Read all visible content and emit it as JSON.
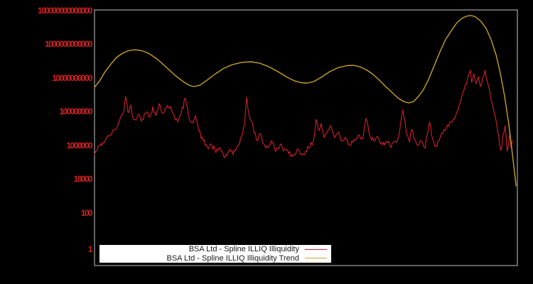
{
  "colors": {
    "background": "#000000",
    "frame": "#c4c4c4",
    "tick_label_color": "#d42020",
    "illiquidity_color": "#d4202c",
    "trend_color": "#c9a227",
    "legend_bg": "#ffffff",
    "legend_border": "#000000",
    "legend_text": "#1a1a1a"
  },
  "legend": {
    "entries": [
      {
        "label": "BSA Ltd - Spline ILLIQ Illiquidity",
        "swatch": "red-line"
      },
      {
        "label": "BSA Ltd - Spline ILLIQ Illiquidity Trend",
        "swatch": "gold-line"
      }
    ]
  },
  "chart_data": {
    "type": "line",
    "title": "",
    "xlabel": "",
    "ylabel": "",
    "y_scale": "log10",
    "ylim": [
      0.1,
      100000000000000
    ],
    "x_axis_labels": "none",
    "grid": false,
    "legend_position": "bottom-center-inside",
    "y_tick_labels": [
      "100000000000000",
      "1000000000000",
      "10000000000",
      "100000000",
      "1000000",
      "10000",
      "100",
      "1"
    ],
    "y_tick_values": [
      100000000000000,
      1000000000000,
      10000000000,
      100000000,
      1000000,
      10000,
      100,
      1
    ],
    "series": [
      {
        "name": "BSA Ltd - Spline ILLIQ Illiquidity",
        "style": "noisy",
        "noise_log10_amp": 0.18,
        "points_x_fraction_log10": [
          [
            0.0,
            5.54
          ],
          [
            0.012,
            6.04
          ],
          [
            0.025,
            6.33
          ],
          [
            0.037,
            6.67
          ],
          [
            0.049,
            6.96
          ],
          [
            0.059,
            7.5
          ],
          [
            0.067,
            7.92
          ],
          [
            0.074,
            8.92
          ],
          [
            0.079,
            8.0
          ],
          [
            0.086,
            8.42
          ],
          [
            0.092,
            7.58
          ],
          [
            0.103,
            7.83
          ],
          [
            0.113,
            7.58
          ],
          [
            0.123,
            8.0
          ],
          [
            0.131,
            7.71
          ],
          [
            0.138,
            8.33
          ],
          [
            0.145,
            7.79
          ],
          [
            0.153,
            8.5
          ],
          [
            0.161,
            7.92
          ],
          [
            0.17,
            8.25
          ],
          [
            0.18,
            8.33
          ],
          [
            0.188,
            7.83
          ],
          [
            0.197,
            7.42
          ],
          [
            0.205,
            7.92
          ],
          [
            0.215,
            8.83
          ],
          [
            0.222,
            7.83
          ],
          [
            0.23,
            7.42
          ],
          [
            0.239,
            7.79
          ],
          [
            0.247,
            6.88
          ],
          [
            0.257,
            6.33
          ],
          [
            0.267,
            5.92
          ],
          [
            0.277,
            6.08
          ],
          [
            0.287,
            5.63
          ],
          [
            0.297,
            5.92
          ],
          [
            0.308,
            5.33
          ],
          [
            0.318,
            5.75
          ],
          [
            0.328,
            5.5
          ],
          [
            0.338,
            6.0
          ],
          [
            0.348,
            6.58
          ],
          [
            0.355,
            7.25
          ],
          [
            0.36,
            8.88
          ],
          [
            0.366,
            7.75
          ],
          [
            0.375,
            7.17
          ],
          [
            0.383,
            6.33
          ],
          [
            0.392,
            6.75
          ],
          [
            0.4,
            6.13
          ],
          [
            0.41,
            5.92
          ],
          [
            0.418,
            6.33
          ],
          [
            0.429,
            5.71
          ],
          [
            0.439,
            6.08
          ],
          [
            0.449,
            5.83
          ],
          [
            0.459,
            5.58
          ],
          [
            0.469,
            5.42
          ],
          [
            0.479,
            5.83
          ],
          [
            0.489,
            5.54
          ],
          [
            0.499,
            5.71
          ],
          [
            0.509,
            5.92
          ],
          [
            0.518,
            6.33
          ],
          [
            0.524,
            7.58
          ],
          [
            0.531,
            6.92
          ],
          [
            0.536,
            7.33
          ],
          [
            0.543,
            6.5
          ],
          [
            0.551,
            6.92
          ],
          [
            0.56,
            7.13
          ],
          [
            0.568,
            6.5
          ],
          [
            0.577,
            6.83
          ],
          [
            0.585,
            6.29
          ],
          [
            0.593,
            6.54
          ],
          [
            0.603,
            6.08
          ],
          [
            0.613,
            6.38
          ],
          [
            0.624,
            6.67
          ],
          [
            0.634,
            6.42
          ],
          [
            0.642,
            7.63
          ],
          [
            0.65,
            6.67
          ],
          [
            0.661,
            6.29
          ],
          [
            0.671,
            6.5
          ],
          [
            0.681,
            6.08
          ],
          [
            0.691,
            6.29
          ],
          [
            0.701,
            5.92
          ],
          [
            0.711,
            6.29
          ],
          [
            0.719,
            6.58
          ],
          [
            0.729,
            8.13
          ],
          [
            0.738,
            6.67
          ],
          [
            0.745,
            6.25
          ],
          [
            0.75,
            7.0
          ],
          [
            0.756,
            6.42
          ],
          [
            0.765,
            6.04
          ],
          [
            0.773,
            6.29
          ],
          [
            0.782,
            5.88
          ],
          [
            0.792,
            7.42
          ],
          [
            0.8,
            6.42
          ],
          [
            0.807,
            6.04
          ],
          [
            0.815,
            6.33
          ],
          [
            0.824,
            6.75
          ],
          [
            0.832,
            7.04
          ],
          [
            0.84,
            7.42
          ],
          [
            0.849,
            7.63
          ],
          [
            0.857,
            8.0
          ],
          [
            0.866,
            8.63
          ],
          [
            0.874,
            9.29
          ],
          [
            0.882,
            9.96
          ],
          [
            0.889,
            10.46
          ],
          [
            0.892,
            9.75
          ],
          [
            0.897,
            10.25
          ],
          [
            0.902,
            9.67
          ],
          [
            0.908,
            10.08
          ],
          [
            0.913,
            9.5
          ],
          [
            0.918,
            10.0
          ],
          [
            0.924,
            10.46
          ],
          [
            0.929,
            9.79
          ],
          [
            0.934,
            9.33
          ],
          [
            0.939,
            8.63
          ],
          [
            0.944,
            8.13
          ],
          [
            0.951,
            7.29
          ],
          [
            0.956,
            6.58
          ],
          [
            0.961,
            5.75
          ],
          [
            0.966,
            6.67
          ],
          [
            0.971,
            7.21
          ],
          [
            0.976,
            5.71
          ],
          [
            0.982,
            6.75
          ],
          [
            0.985,
            5.92
          ],
          [
            0.988,
            6.33
          ]
        ]
      },
      {
        "name": "BSA Ltd - Spline ILLIQ Illiquidity Trend",
        "style": "smooth",
        "noise_log10_amp": 0,
        "points_x_fraction_log10": [
          [
            0.0,
            9.46
          ],
          [
            0.012,
            9.83
          ],
          [
            0.025,
            10.38
          ],
          [
            0.039,
            10.83
          ],
          [
            0.052,
            11.21
          ],
          [
            0.066,
            11.46
          ],
          [
            0.079,
            11.6
          ],
          [
            0.096,
            11.67
          ],
          [
            0.113,
            11.6
          ],
          [
            0.129,
            11.44
          ],
          [
            0.15,
            11.08
          ],
          [
            0.17,
            10.63
          ],
          [
            0.19,
            10.17
          ],
          [
            0.21,
            9.79
          ],
          [
            0.224,
            9.58
          ],
          [
            0.235,
            9.5
          ],
          [
            0.249,
            9.58
          ],
          [
            0.266,
            9.88
          ],
          [
            0.286,
            10.25
          ],
          [
            0.306,
            10.58
          ],
          [
            0.326,
            10.79
          ],
          [
            0.348,
            10.92
          ],
          [
            0.37,
            10.96
          ],
          [
            0.39,
            10.88
          ],
          [
            0.412,
            10.67
          ],
          [
            0.434,
            10.38
          ],
          [
            0.456,
            10.04
          ],
          [
            0.474,
            9.83
          ],
          [
            0.489,
            9.73
          ],
          [
            0.503,
            9.71
          ],
          [
            0.518,
            9.79
          ],
          [
            0.536,
            10.04
          ],
          [
            0.556,
            10.38
          ],
          [
            0.578,
            10.63
          ],
          [
            0.597,
            10.73
          ],
          [
            0.612,
            10.75
          ],
          [
            0.627,
            10.67
          ],
          [
            0.642,
            10.5
          ],
          [
            0.657,
            10.25
          ],
          [
            0.672,
            9.92
          ],
          [
            0.687,
            9.54
          ],
          [
            0.703,
            9.17
          ],
          [
            0.718,
            8.83
          ],
          [
            0.731,
            8.63
          ],
          [
            0.743,
            8.54
          ],
          [
            0.755,
            8.63
          ],
          [
            0.766,
            8.92
          ],
          [
            0.778,
            9.33
          ],
          [
            0.79,
            9.92
          ],
          [
            0.803,
            10.71
          ],
          [
            0.817,
            11.54
          ],
          [
            0.83,
            12.25
          ],
          [
            0.844,
            12.79
          ],
          [
            0.857,
            13.25
          ],
          [
            0.871,
            13.54
          ],
          [
            0.882,
            13.65
          ],
          [
            0.892,
            13.67
          ],
          [
            0.902,
            13.58
          ],
          [
            0.914,
            13.33
          ],
          [
            0.926,
            12.92
          ],
          [
            0.938,
            12.25
          ],
          [
            0.95,
            11.33
          ],
          [
            0.96,
            10.25
          ],
          [
            0.97,
            8.92
          ],
          [
            0.98,
            7.25
          ],
          [
            0.988,
            5.58
          ],
          [
            0.997,
            3.67
          ]
        ]
      }
    ]
  }
}
